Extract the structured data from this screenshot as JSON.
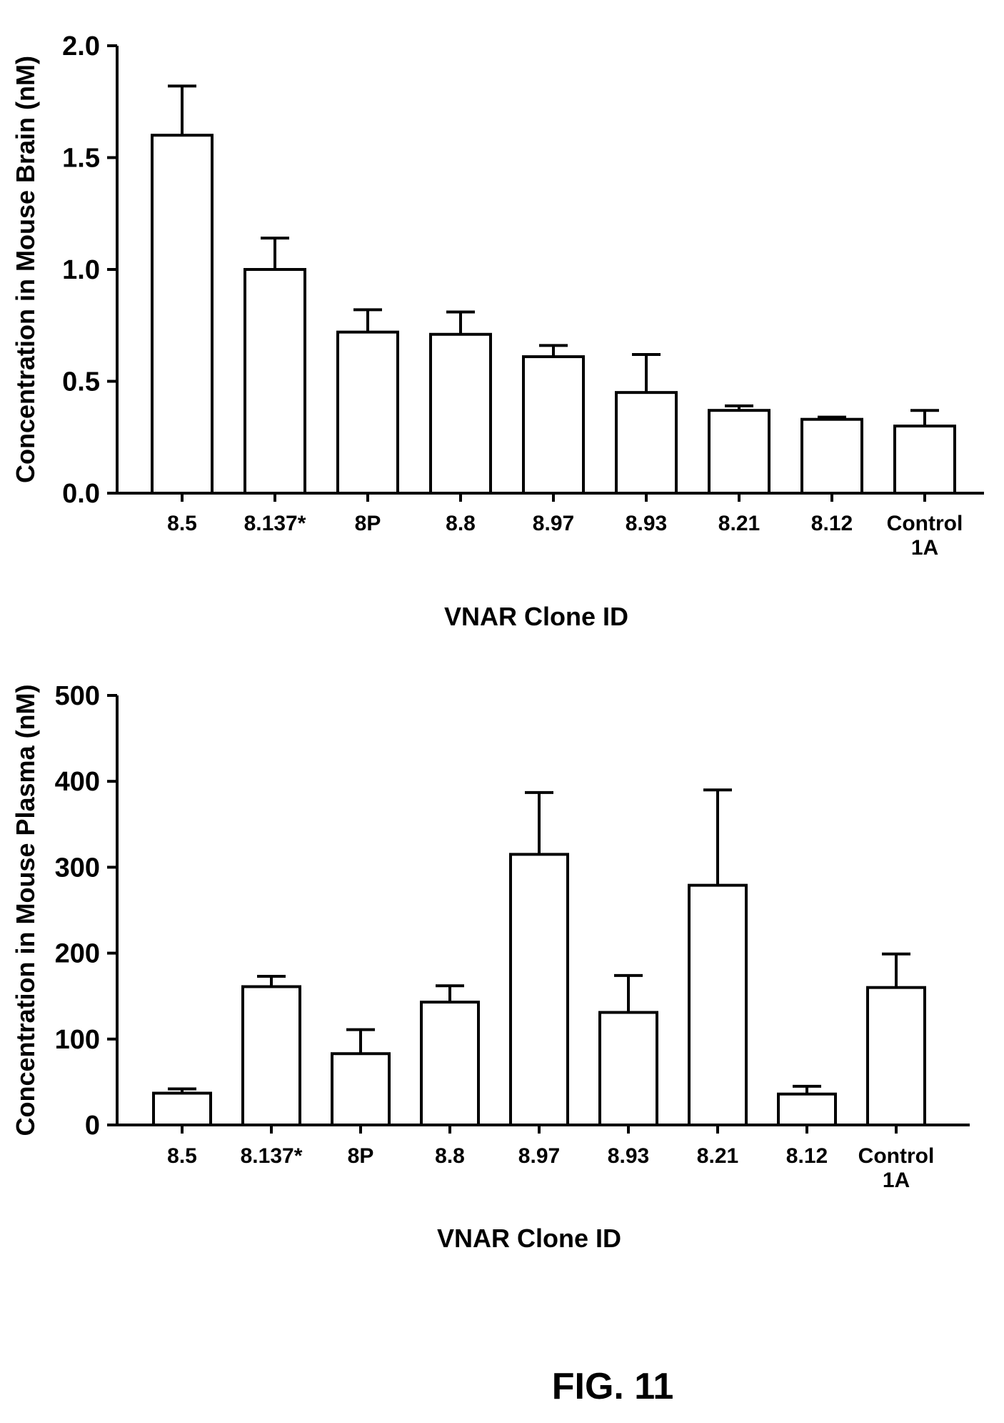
{
  "figure_label": "FIG. 11",
  "chart_data": [
    {
      "type": "bar",
      "categories": [
        "8.5",
        "8.137*",
        "8P",
        "8.8",
        "8.97",
        "8.93",
        "8.21",
        "8.12",
        "Control\n1A"
      ],
      "values": [
        1.6,
        1.0,
        0.72,
        0.71,
        0.61,
        0.45,
        0.37,
        0.33,
        0.3
      ],
      "error": [
        0.22,
        0.14,
        0.1,
        0.1,
        0.05,
        0.17,
        0.02,
        0.01,
        0.07
      ],
      "ylim": [
        0,
        2.0
      ],
      "yticks": [
        0.0,
        0.5,
        1.0,
        1.5,
        2.0
      ],
      "ytick_labels": [
        "0.0",
        "0.5",
        "1.0",
        "1.5",
        "2.0"
      ],
      "xlabel": "VNAR Clone ID",
      "ylabel": "Concentration in Mouse Brain (nM)",
      "grid": false
    },
    {
      "type": "bar",
      "categories": [
        "8.5",
        "8.137*",
        "8P",
        "8.8",
        "8.97",
        "8.93",
        "8.21",
        "8.12",
        "Control\n1A"
      ],
      "values": [
        37,
        161,
        83,
        143,
        315,
        131,
        279,
        36,
        160
      ],
      "error": [
        5,
        12,
        28,
        19,
        72,
        43,
        111,
        9,
        39
      ],
      "ylim": [
        0,
        500
      ],
      "yticks": [
        0,
        100,
        200,
        300,
        400,
        500
      ],
      "ytick_labels": [
        "0",
        "100",
        "200",
        "300",
        "400",
        "500"
      ],
      "xlabel": "VNAR Clone ID",
      "ylabel": "Concentration in Mouse Plasma (nM)",
      "grid": false
    }
  ]
}
